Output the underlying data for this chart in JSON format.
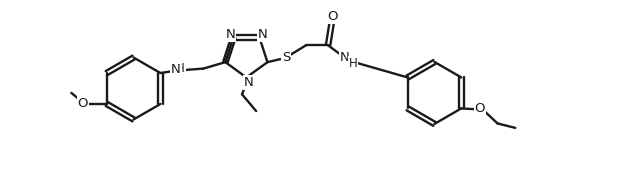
{
  "bg_color": "#ffffff",
  "line_color": "#1a1a1a",
  "line_width": 1.7,
  "fig_width": 6.3,
  "fig_height": 1.77,
  "dpi": 100,
  "xlim": [
    -0.5,
    10.5
  ],
  "ylim": [
    -0.8,
    2.8
  ]
}
